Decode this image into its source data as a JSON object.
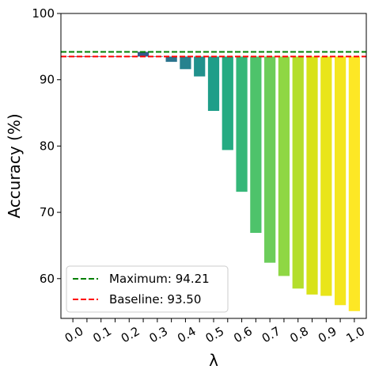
{
  "chart_data": {
    "type": "bar",
    "xlabel": "λ",
    "ylabel": "Accuracy (%)",
    "ylim": [
      54,
      100
    ],
    "y_ticks": [
      60,
      70,
      80,
      90,
      100
    ],
    "x_tick_labels": [
      "0.0",
      "0.1",
      "0.2",
      "0.3",
      "0.4",
      "0.5",
      "0.6",
      "0.7",
      "0.8",
      "0.9",
      "1.0"
    ],
    "x_tick_rotation_deg": 30,
    "baseline": 93.5,
    "x": [
      0.0,
      0.05,
      0.1,
      0.15,
      0.2,
      0.25,
      0.3,
      0.35,
      0.4,
      0.45,
      0.5,
      0.55,
      0.6,
      0.65,
      0.7,
      0.75,
      0.8,
      0.85,
      0.9,
      0.95,
      1.0
    ],
    "values": [
      93.5,
      93.5,
      93.52,
      93.5,
      93.5,
      94.21,
      93.5,
      92.7,
      91.6,
      90.5,
      85.3,
      79.4,
      73.1,
      66.9,
      62.4,
      60.4,
      58.5,
      57.6,
      57.4,
      56.0,
      55.1
    ],
    "bar_colors": [
      "#440154",
      "#481467",
      "#482576",
      "#453781",
      "#3e4989",
      "#375a8c",
      "#31688e",
      "#2b748e",
      "#26828e",
      "#21918c",
      "#1f9e89",
      "#25ab82",
      "#35b779",
      "#4ec36b",
      "#6ccd5a",
      "#8fd744",
      "#b4de2c",
      "#d8e219",
      "#e9e51a",
      "#f4e61e",
      "#fde725"
    ],
    "reference_lines": [
      {
        "label": "Maximum: 94.21",
        "value": 94.21,
        "color": "#008000",
        "style": "dashed"
      },
      {
        "label": "Baseline: 93.50",
        "value": 93.5,
        "color": "#ff0000",
        "style": "dashed"
      }
    ],
    "legend_position": "bottom-left",
    "grid": false
  }
}
